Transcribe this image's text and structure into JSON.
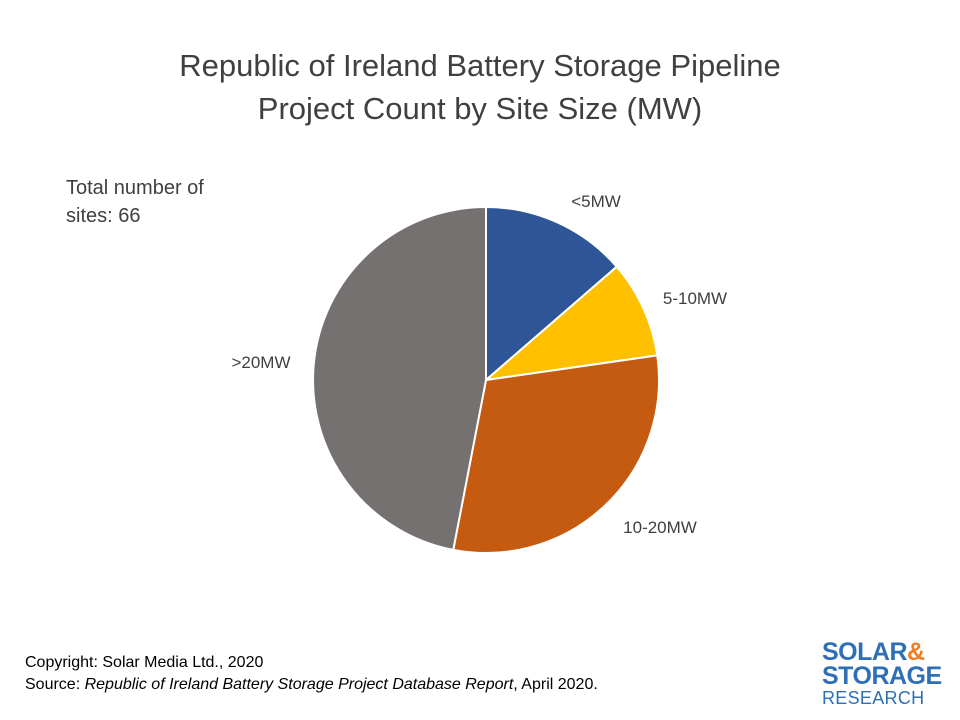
{
  "chart_data": {
    "type": "pie",
    "title": "Republic of Ireland Battery Storage Pipeline",
    "subtitle": "Project Count by Site Size (MW)",
    "annotation": [
      "Total number of",
      "sites: 66"
    ],
    "categories": [
      "<5MW",
      "5-10MW",
      "10-20MW",
      ">20MW"
    ],
    "values": [
      9,
      6,
      20,
      31
    ],
    "colors": [
      "#2e5597",
      "#ffc000",
      "#c55a11",
      "#767171"
    ],
    "start_angle_deg": 0,
    "direction": "clockwise"
  },
  "footer": {
    "copyright": "Copyright: Solar Media Ltd., 2020",
    "source_prefix": "Source: ",
    "source_title": "Republic of Ireland Battery Storage Project Database Report",
    "source_suffix": ", April 2020."
  },
  "logo": {
    "line1": "SOLAR",
    "ampersand": "&",
    "line2": "STORAGE",
    "line3": "RESEARCH"
  }
}
